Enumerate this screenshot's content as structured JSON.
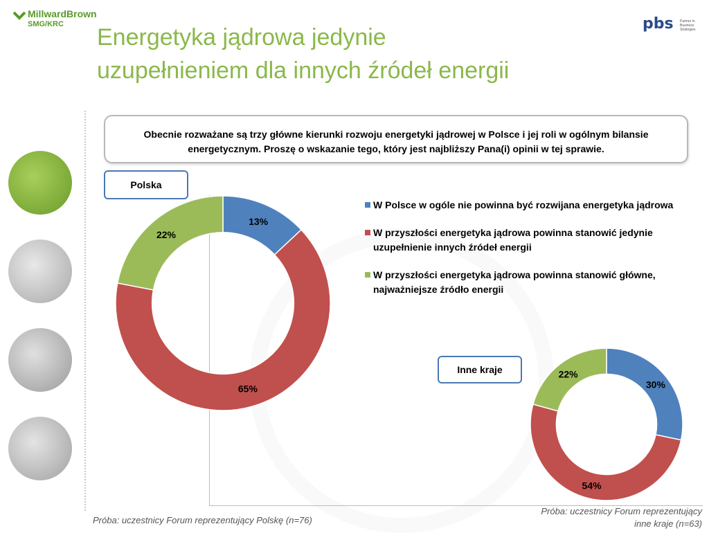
{
  "header": {
    "brand_left": "MillwardBrown",
    "brand_left_sub": "SMG/KRC",
    "brand_right": "pbs",
    "brand_right_tagline": "Partner in Business Strategies"
  },
  "title_line1": "Energetyka jądrowa jedynie",
  "title_line2": "uzupełnieniem dla innych źródeł energii",
  "question": "Obecnie rozważane są trzy główne kierunki rozwoju energetyki jądrowej w Polsce i jej roli w ogólnym bilansie energetycznym. Proszę o wskazanie tego, który jest najbliższy Pana(i) opinii w tej sprawie.",
  "colors": {
    "blue": "#4f81bd",
    "red": "#c0504d",
    "green": "#9bbb59",
    "title": "#8ab84a",
    "tag_border": "#4a78b4"
  },
  "legend": [
    {
      "label": "W Polsce w ogóle nie powinna być rozwijana energetyka jądrowa",
      "color": "#4f81bd"
    },
    {
      "label": "W przyszłości energetyka jądrowa powinna stanowić jedynie uzupełnienie innych źródeł energii",
      "color": "#c0504d"
    },
    {
      "label": "W przyszłości energetyka jądrowa powinna stanowić główne, najważniejsze źródło energii",
      "color": "#9bbb59"
    }
  ],
  "chart_data": [
    {
      "type": "pie",
      "title": "Polska",
      "categories": [
        "W Polsce w ogóle nie powinna być rozwijana energetyka jądrowa",
        "W przyszłości energetyka jądrowa powinna stanowić jedynie uzupełnienie innych źródeł energii",
        "W przyszłości energetyka jądrowa powinna stanowić główne, najważniejsze źródło energii"
      ],
      "values": [
        13,
        65,
        22
      ],
      "labels": [
        "13%",
        "65%",
        "22%"
      ],
      "colors": [
        "#4f81bd",
        "#c0504d",
        "#9bbb59"
      ],
      "legend": "right"
    },
    {
      "type": "pie",
      "title": "Inne kraje",
      "categories": [
        "W Polsce w ogóle nie powinna być rozwijana energetyka jądrowa",
        "W przyszłości energetyka jądrowa powinna stanowić jedynie uzupełnienie innych źródeł energii",
        "W przyszłości energetyka jądrowa powinna stanowić główne, najważniejsze źródło energii"
      ],
      "values": [
        30,
        54,
        22
      ],
      "labels": [
        "30%",
        "54%",
        "22%"
      ],
      "colors": [
        "#4f81bd",
        "#c0504d",
        "#9bbb59"
      ],
      "legend": "right"
    }
  ],
  "footnote_left": "Próba: uczestnicy Forum reprezentujący Polskę (n=76)",
  "footnote_right_line1": "Próba: uczestnicy Forum reprezentujący",
  "footnote_right_line2": "inne kraje (n=63)"
}
